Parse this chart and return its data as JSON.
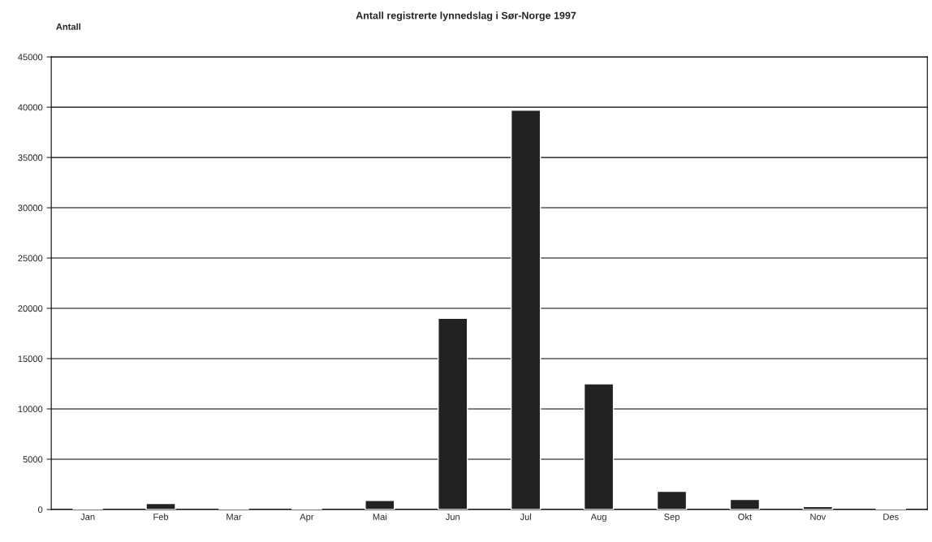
{
  "chart_data": {
    "type": "bar",
    "title": "Antall registrerte lynnedslag i Sør-Norge 1997",
    "ylabel": "Antall",
    "categories": [
      "Jan",
      "Feb",
      "Mar",
      "Apr",
      "Mai",
      "Jun",
      "Jul",
      "Aug",
      "Sep",
      "Okt",
      "Nov",
      "Des"
    ],
    "values": [
      100,
      600,
      100,
      100,
      900,
      19000,
      39700,
      12500,
      1800,
      1000,
      300,
      100
    ],
    "color": "#222222",
    "ylim": [
      0,
      45000
    ],
    "yticks": [
      0,
      5000,
      10000,
      15000,
      20000,
      25000,
      30000,
      35000,
      40000,
      45000
    ],
    "grid": "y"
  }
}
